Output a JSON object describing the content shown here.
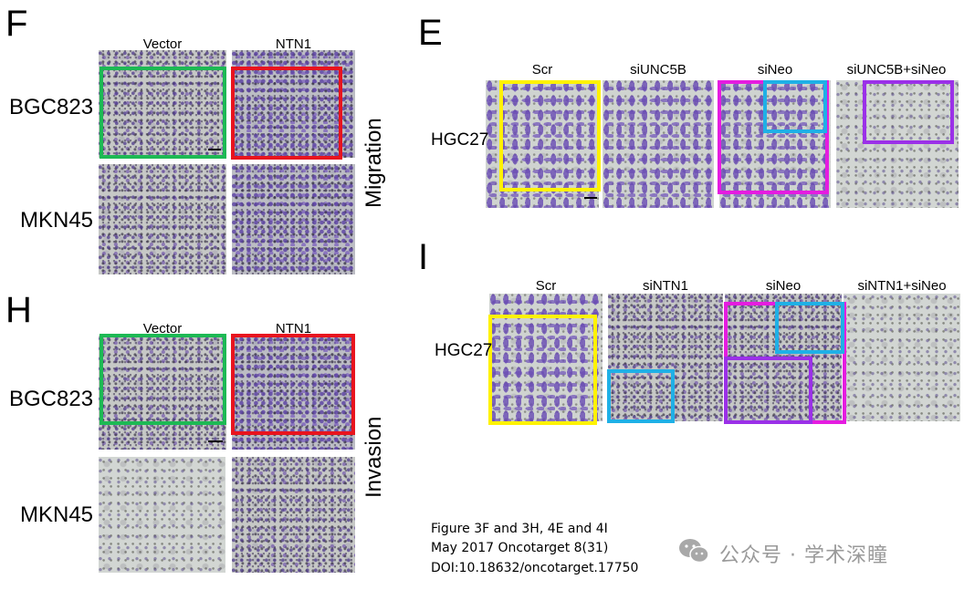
{
  "panels": {
    "F": {
      "letter": "F",
      "columns": [
        "Vector",
        "NTN1"
      ],
      "rows": [
        "BGC823",
        "MKN45"
      ],
      "side_label": "Migration"
    },
    "H": {
      "letter": "H",
      "columns": [
        "Vector",
        "NTN1"
      ],
      "rows": [
        "BGC823",
        "MKN45"
      ],
      "side_label": "Invasion"
    },
    "E": {
      "letter": "E",
      "columns": [
        "Scr",
        "siUNC5B",
        "siNeo",
        "siUNC5B+siNeo"
      ],
      "row": "HGC27"
    },
    "I": {
      "letter": "I",
      "columns": [
        "Scr",
        "siNTN1",
        "siNeo",
        "siNTN1+siNeo"
      ],
      "row": "HGC27"
    }
  },
  "colors": {
    "green": "#1db954",
    "red": "#e8141e",
    "yellow": "#fff200",
    "magenta": "#e51ce0",
    "cyan": "#1fb0e6",
    "purple": "#9b30e8"
  },
  "caption": {
    "line1": "Figure 3F and 3H, 4E and 4I",
    "line2": "May 2017 Oncotarget 8(31)",
    "line3": "DOI:10.18632/oncotarget.17750"
  },
  "watermark": {
    "icon": "wechat-icon",
    "text": "公众号 · 学术深瞳"
  }
}
